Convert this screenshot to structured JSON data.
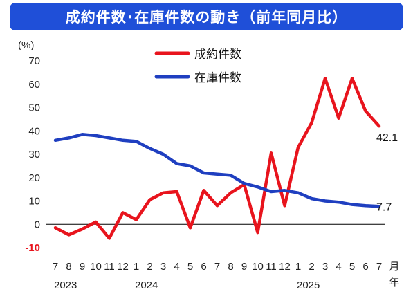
{
  "chart_data": {
    "type": "line",
    "title": "成約件数･在庫件数の動き（前年同月比）",
    "ylabel": "(%)",
    "ylim": [
      -10,
      70
    ],
    "yticks": [
      {
        "label": "70",
        "value": 70
      },
      {
        "label": "60",
        "value": 60
      },
      {
        "label": "50",
        "value": 50
      },
      {
        "label": "40",
        "value": 40
      },
      {
        "label": "30",
        "value": 30
      },
      {
        "label": "20",
        "value": 20
      },
      {
        "label": "10",
        "value": 10
      },
      {
        "label": "0",
        "value": 0
      },
      {
        "label": "-10",
        "value": -10,
        "negative": true
      }
    ],
    "categories": [
      "7",
      "8",
      "9",
      "10",
      "11",
      "12",
      "1",
      "2",
      "3",
      "4",
      "5",
      "6",
      "7",
      "8",
      "9",
      "10",
      "11",
      "12",
      "1",
      "2",
      "3",
      "4",
      "5",
      "6",
      "7"
    ],
    "year_labels": [
      {
        "label": "2023",
        "index": 0
      },
      {
        "label": "2024",
        "index": 6
      },
      {
        "label": "2025",
        "index": 18
      }
    ],
    "xunit": "月\n年",
    "series": [
      {
        "name": "成約件数",
        "color": "#e8141d",
        "values": [
          -1.5,
          -4.5,
          -2,
          1,
          -6,
          5,
          2,
          10.5,
          13.5,
          14,
          -1.5,
          14.5,
          8,
          13.5,
          17,
          -3.5,
          30.5,
          8,
          33,
          43.5,
          62.5,
          45.5,
          62.5,
          48.5,
          42.1
        ],
        "end_label": "42.1"
      },
      {
        "name": "在庫件数",
        "color": "#1f3fc0",
        "values": [
          36,
          37,
          38.5,
          38,
          37,
          36,
          35.5,
          32.5,
          30,
          26,
          25,
          22,
          21.5,
          21,
          17.5,
          16,
          14,
          14.5,
          13.5,
          11,
          10,
          9.5,
          8.5,
          8,
          7.7
        ],
        "end_label": "7.7"
      }
    ],
    "legend_position": "top-center",
    "grid": false
  }
}
